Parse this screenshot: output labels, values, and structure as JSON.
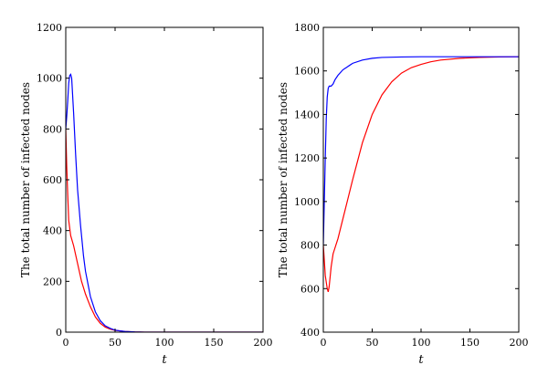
{
  "chart_data": [
    {
      "type": "line",
      "xlabel": "t",
      "ylabel": "The total number of infected nodes",
      "xlim": [
        0,
        200
      ],
      "ylim": [
        0,
        1200
      ],
      "xticks": [
        0,
        50,
        100,
        150,
        200
      ],
      "yticks": [
        0,
        200,
        400,
        600,
        800,
        1000,
        1200
      ],
      "grid": false,
      "series": [
        {
          "color": "#ff0000",
          "x": [
            0,
            1,
            2,
            3,
            5,
            8,
            12,
            16,
            20,
            25,
            30,
            35,
            40,
            45,
            50,
            60,
            70,
            80,
            100,
            150,
            200
          ],
          "y": [
            800,
            650,
            540,
            440,
            380,
            340,
            270,
            200,
            150,
            100,
            60,
            35,
            20,
            12,
            7,
            3,
            1,
            0,
            0,
            0,
            0
          ]
        },
        {
          "color": "#0000ff",
          "x": [
            0,
            1,
            2,
            3,
            4,
            5,
            6,
            8,
            10,
            12,
            15,
            18,
            20,
            25,
            30,
            35,
            40,
            45,
            50,
            55,
            60,
            70,
            80,
            100,
            150,
            200
          ],
          "y": [
            800,
            850,
            910,
            980,
            1010,
            1015,
            1000,
            860,
            700,
            560,
            420,
            300,
            240,
            140,
            80,
            45,
            25,
            15,
            8,
            5,
            3,
            1,
            0,
            0,
            0,
            0
          ]
        }
      ]
    },
    {
      "type": "line",
      "xlabel": "t",
      "ylabel": "The total number of infected nodes",
      "xlim": [
        0,
        200
      ],
      "ylim": [
        400,
        1800
      ],
      "xticks": [
        0,
        50,
        100,
        150,
        200
      ],
      "yticks": [
        400,
        600,
        800,
        1000,
        1200,
        1400,
        1600,
        1800
      ],
      "grid": false,
      "series": [
        {
          "color": "#ff0000",
          "x": [
            0,
            2,
            4,
            5,
            6,
            8,
            10,
            15,
            20,
            25,
            30,
            40,
            50,
            60,
            70,
            80,
            90,
            100,
            110,
            120,
            140,
            160,
            180,
            200
          ],
          "y": [
            800,
            660,
            600,
            585,
            610,
            700,
            760,
            830,
            920,
            1010,
            1100,
            1270,
            1400,
            1490,
            1550,
            1590,
            1615,
            1630,
            1642,
            1650,
            1658,
            1662,
            1664,
            1665
          ]
        },
        {
          "color": "#0000ff",
          "x": [
            0,
            1,
            2,
            3,
            4,
            5,
            6,
            8,
            10,
            12,
            15,
            20,
            25,
            30,
            40,
            50,
            60,
            80,
            100,
            150,
            200
          ],
          "y": [
            800,
            1000,
            1200,
            1380,
            1480,
            1520,
            1530,
            1530,
            1540,
            1560,
            1580,
            1605,
            1620,
            1635,
            1650,
            1658,
            1662,
            1664,
            1665,
            1665,
            1665
          ]
        }
      ]
    }
  ]
}
